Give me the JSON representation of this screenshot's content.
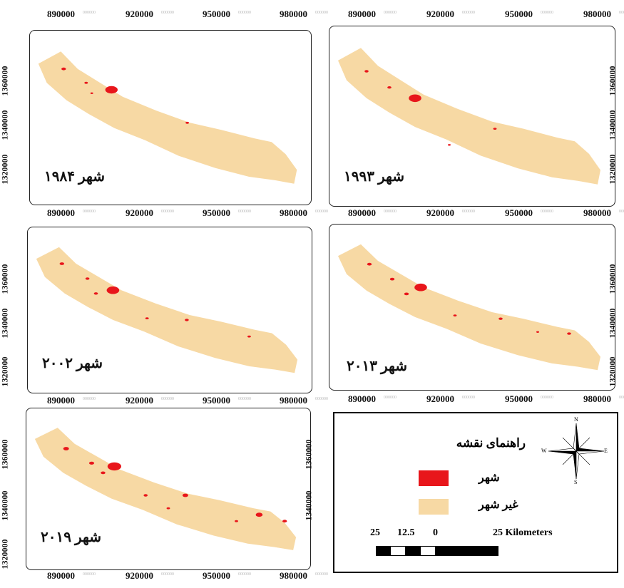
{
  "colors": {
    "city": "#e8161b",
    "non_city": "#f7d9a4",
    "frame": "#222222"
  },
  "x_ticks": [
    "890000",
    "920000",
    "950000",
    "980000"
  ],
  "y_ticks": [
    "1360000",
    "1340000",
    "1320000"
  ],
  "tick_suffix": "000000",
  "panels": [
    {
      "id": "p1984",
      "title": "شهر ۱۹۸۴"
    },
    {
      "id": "p1993",
      "title": "شهر ۱۹۹۳"
    },
    {
      "id": "p2002",
      "title": "شهر ۲۰۰۲"
    },
    {
      "id": "p2013",
      "title": "شهر ۲۰۱۳"
    },
    {
      "id": "p2019",
      "title": "شهر ۲۰۱۹"
    }
  ],
  "legend": {
    "title": "راهنمای نقشه",
    "items": [
      {
        "label": "شهر",
        "color": "#e8161b"
      },
      {
        "label": "غیر شهر",
        "color": "#f7d9a4"
      }
    ],
    "scale_labels": [
      "25",
      "12.5",
      "0",
      "25 Kilometers"
    ],
    "compass": {
      "n": "N",
      "s": "S",
      "e": "E",
      "w": "W"
    }
  }
}
